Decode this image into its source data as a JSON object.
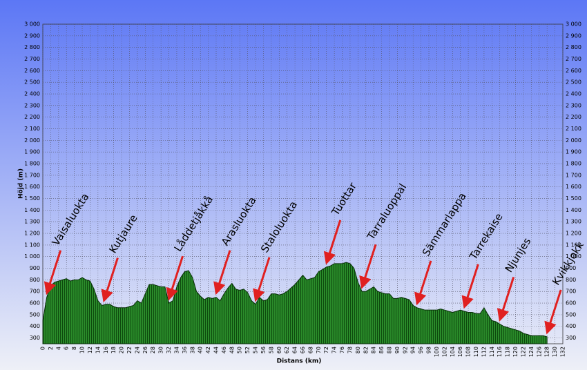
{
  "chart_data": {
    "type": "area",
    "xlabel": "Distans (km)",
    "ylabel": "Höjd (m)",
    "color": "#1e7d1e",
    "grid": true,
    "xlim": [
      0,
      132
    ],
    "ylim": [
      250,
      3000
    ],
    "xticks": [
      0,
      2,
      4,
      6,
      8,
      10,
      12,
      14,
      16,
      18,
      20,
      22,
      24,
      26,
      28,
      30,
      32,
      34,
      36,
      38,
      40,
      42,
      44,
      46,
      48,
      50,
      52,
      54,
      56,
      58,
      60,
      62,
      64,
      66,
      68,
      70,
      72,
      74,
      76,
      78,
      80,
      82,
      84,
      86,
      88,
      90,
      92,
      94,
      96,
      98,
      100,
      102,
      104,
      106,
      108,
      110,
      112,
      114,
      116,
      118,
      120,
      122,
      124,
      126,
      128,
      130,
      132
    ],
    "yticks": [
      300,
      400,
      500,
      600,
      700,
      800,
      900,
      {
        "value": 1000,
        "label": "1 000"
      },
      {
        "value": 1100,
        "label": "1 100"
      },
      {
        "value": 1200,
        "label": "1 200"
      },
      {
        "value": 1300,
        "label": "1 300"
      },
      {
        "value": 1400,
        "label": "1 400"
      },
      {
        "value": 1500,
        "label": "1 500"
      },
      {
        "value": 1600,
        "label": "1 600"
      },
      {
        "value": 1700,
        "label": "1 700"
      },
      {
        "value": 1800,
        "label": "1 800"
      },
      {
        "value": 1900,
        "label": "1 900"
      },
      {
        "value": 2000,
        "label": "2 000"
      },
      {
        "value": 2100,
        "label": "2 100"
      },
      {
        "value": 2200,
        "label": "2 200"
      },
      {
        "value": 2300,
        "label": "2 300"
      },
      {
        "value": 2400,
        "label": "2 400"
      },
      {
        "value": 2500,
        "label": "2 500"
      },
      {
        "value": 2600,
        "label": "2 600"
      },
      {
        "value": 2700,
        "label": "2 700"
      },
      {
        "value": 2800,
        "label": "2 800"
      },
      {
        "value": 2900,
        "label": "2 900"
      },
      {
        "value": 3000,
        "label": "3 000"
      }
    ],
    "x": [
      0,
      1,
      2,
      3,
      4,
      5,
      6,
      7,
      8,
      9,
      10,
      11,
      12,
      13,
      14,
      15,
      16,
      17,
      18,
      19,
      20,
      21,
      22,
      23,
      24,
      25,
      26,
      27,
      28,
      29,
      30,
      31,
      32,
      33,
      34,
      35,
      36,
      37,
      38,
      39,
      40,
      41,
      42,
      43,
      44,
      45,
      46,
      47,
      48,
      49,
      50,
      51,
      52,
      53,
      54,
      55,
      56,
      57,
      58,
      59,
      60,
      61,
      62,
      63,
      64,
      65,
      66,
      67,
      68,
      69,
      70,
      71,
      72,
      73,
      74,
      75,
      76,
      77,
      78,
      79,
      80,
      81,
      82,
      83,
      84,
      85,
      86,
      87,
      88,
      89,
      90,
      91,
      92,
      93,
      94,
      95,
      96,
      97,
      98,
      99,
      100,
      101,
      102,
      103,
      104,
      105,
      106,
      107,
      108,
      109,
      110,
      111,
      112,
      113,
      114,
      115,
      116,
      117,
      118,
      119,
      120,
      121,
      122,
      123,
      124,
      125,
      126,
      127,
      128
    ],
    "values": [
      450,
      650,
      750,
      780,
      790,
      800,
      810,
      790,
      800,
      800,
      820,
      800,
      790,
      720,
      620,
      580,
      590,
      590,
      570,
      560,
      560,
      560,
      570,
      580,
      620,
      600,
      680,
      760,
      760,
      750,
      740,
      740,
      600,
      620,
      740,
      820,
      870,
      880,
      820,
      700,
      660,
      630,
      650,
      640,
      650,
      620,
      680,
      730,
      770,
      720,
      710,
      720,
      690,
      620,
      590,
      650,
      620,
      630,
      680,
      680,
      670,
      680,
      700,
      730,
      760,
      800,
      840,
      800,
      810,
      820,
      870,
      890,
      910,
      920,
      940,
      940,
      940,
      950,
      940,
      900,
      780,
      700,
      700,
      720,
      740,
      700,
      690,
      680,
      680,
      640,
      640,
      650,
      640,
      630,
      580,
      560,
      550,
      540,
      540,
      540,
      540,
      550,
      540,
      530,
      520,
      530,
      540,
      530,
      520,
      520,
      510,
      510,
      560,
      500,
      450,
      440,
      420,
      400,
      390,
      380,
      370,
      360,
      340,
      330,
      320,
      320,
      320,
      320,
      310
    ],
    "annotations": [
      {
        "label": "Vaisaluokta",
        "x": 1
      },
      {
        "label": "Kutjaure",
        "x": 15.5
      },
      {
        "label": "Låddetjåkkå",
        "x": 32
      },
      {
        "label": "Arasluokta",
        "x": 44
      },
      {
        "label": "Staloluokta",
        "x": 54
      },
      {
        "label": "Tuottar",
        "x": 72
      },
      {
        "label": "Tarraluoppal",
        "x": 81
      },
      {
        "label": "Sämmarlappa",
        "x": 95
      },
      {
        "label": "Tarrekaise",
        "x": 107
      },
      {
        "label": "Njunjes",
        "x": 116
      },
      {
        "label": "Kvikkjokk",
        "x": 128
      }
    ]
  }
}
